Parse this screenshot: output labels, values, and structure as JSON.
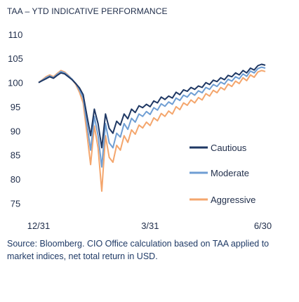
{
  "chart_data": {
    "type": "line",
    "title": "TAA – YTD INDICATIVE PERFORMANCE",
    "xlabel": "",
    "ylabel": "",
    "ylim": [
      72,
      111
    ],
    "yticks": [
      110,
      105,
      100,
      95,
      90,
      85,
      80,
      75
    ],
    "xticks": [
      "12/31",
      "3/31",
      "6/30"
    ],
    "grid": false,
    "legend_position": "center-right",
    "series": [
      {
        "name": "Cautious",
        "color": "#1f3864",
        "style": "solid",
        "x": [
          0,
          3,
          6,
          9,
          12,
          15,
          18,
          21,
          24,
          27,
          30,
          33,
          36,
          39,
          42,
          45,
          48,
          51,
          54,
          57,
          60,
          63,
          66,
          69,
          72,
          75,
          78,
          81,
          84,
          87,
          90,
          93,
          96,
          99,
          102,
          105,
          108,
          111,
          114,
          117,
          120,
          123,
          126,
          129,
          132,
          135,
          138,
          141,
          144,
          147,
          150,
          153,
          156,
          159,
          162,
          165,
          168,
          171,
          174,
          177,
          180,
          183
        ],
        "values": [
          100,
          100.4,
          100.8,
          101.2,
          100.9,
          101.5,
          102.0,
          101.8,
          101.2,
          100.6,
          99.8,
          98.9,
          97.5,
          93.2,
          89.0,
          94.5,
          91.5,
          86.5,
          93.5,
          90.5,
          89.5,
          92.0,
          91.2,
          93.5,
          92.5,
          94.5,
          93.8,
          95.2,
          94.8,
          95.5,
          95.0,
          96.2,
          95.8,
          97.0,
          96.5,
          97.2,
          96.8,
          98.0,
          97.5,
          98.5,
          98.2,
          99.0,
          98.6,
          99.3,
          99.0,
          100.0,
          99.6,
          100.5,
          100.2,
          101.0,
          100.6,
          101.5,
          101.2,
          102.0,
          101.6,
          102.5,
          102.0,
          103.0,
          102.6,
          103.5,
          103.8,
          103.6
        ]
      },
      {
        "name": "Moderate",
        "color": "#6f9ed3",
        "style": "solid",
        "x": [
          0,
          3,
          6,
          9,
          12,
          15,
          18,
          21,
          24,
          27,
          30,
          33,
          36,
          39,
          42,
          45,
          48,
          51,
          54,
          57,
          60,
          63,
          66,
          69,
          72,
          75,
          78,
          81,
          84,
          87,
          90,
          93,
          96,
          99,
          102,
          105,
          108,
          111,
          114,
          117,
          120,
          123,
          126,
          129,
          132,
          135,
          138,
          141,
          144,
          147,
          150,
          153,
          156,
          159,
          162,
          165,
          168,
          171,
          174,
          177,
          180,
          183
        ],
        "values": [
          100,
          100.5,
          101.0,
          101.4,
          101.0,
          101.7,
          102.3,
          102.0,
          101.4,
          100.7,
          99.8,
          98.5,
          96.8,
          91.5,
          86.0,
          93.0,
          89.0,
          82.5,
          91.5,
          87.5,
          86.5,
          89.5,
          88.7,
          91.5,
          90.3,
          92.6,
          91.8,
          93.5,
          93.0,
          94.0,
          93.4,
          94.8,
          94.3,
          95.6,
          95.1,
          96.0,
          95.5,
          96.8,
          96.3,
          97.4,
          97.0,
          97.9,
          97.4,
          98.3,
          97.9,
          99.0,
          98.6,
          99.6,
          99.2,
          100.1,
          99.7,
          100.7,
          100.3,
          101.2,
          100.8,
          101.8,
          101.3,
          102.4,
          102.0,
          102.9,
          103.2,
          103.0
        ]
      },
      {
        "name": "Aggressive",
        "color": "#f4a66d",
        "style": "solid",
        "x": [
          0,
          3,
          6,
          9,
          12,
          15,
          18,
          21,
          24,
          27,
          30,
          33,
          36,
          39,
          42,
          45,
          48,
          51,
          54,
          57,
          60,
          63,
          66,
          69,
          72,
          75,
          78,
          81,
          84,
          87,
          90,
          93,
          96,
          99,
          102,
          105,
          108,
          111,
          114,
          117,
          120,
          123,
          126,
          129,
          132,
          135,
          138,
          141,
          144,
          147,
          150,
          153,
          156,
          159,
          162,
          165,
          168,
          171,
          174,
          177,
          180,
          183
        ],
        "values": [
          100,
          100.6,
          101.2,
          101.6,
          101.2,
          101.9,
          102.5,
          102.2,
          101.5,
          100.7,
          99.6,
          98.0,
          95.8,
          89.5,
          83.0,
          91.0,
          86.5,
          77.5,
          89.0,
          84.5,
          83.5,
          87.0,
          86.0,
          89.0,
          87.6,
          90.2,
          89.3,
          91.2,
          90.6,
          91.8,
          91.1,
          92.7,
          92.1,
          93.6,
          93.0,
          94.1,
          93.5,
          95.0,
          94.4,
          95.8,
          95.3,
          96.4,
          95.8,
          96.9,
          96.4,
          97.7,
          97.2,
          98.4,
          97.9,
          99.0,
          98.5,
          99.7,
          99.2,
          100.3,
          99.8,
          101.0,
          100.4,
          101.6,
          101.1,
          102.2,
          102.5,
          102.3
        ]
      }
    ]
  },
  "source_note": "Source: Bloomberg. CIO Office calculation based on TAA applied to market indices, net total return in USD."
}
